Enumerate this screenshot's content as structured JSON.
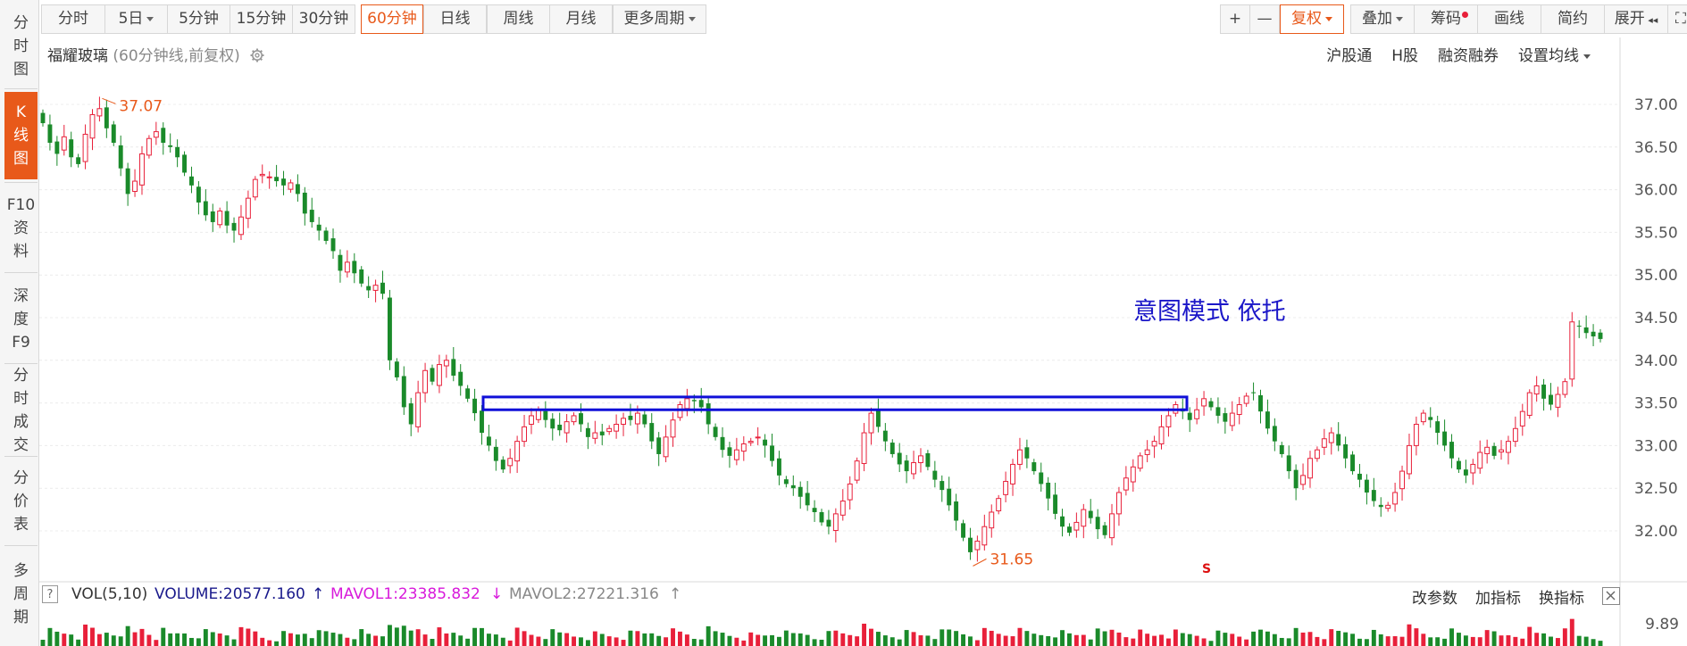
{
  "left_tabs": [
    {
      "label": "分时图",
      "chars": [
        "分",
        "时",
        "图"
      ]
    },
    {
      "label": "K线图",
      "chars": [
        "K",
        "线",
        "图"
      ],
      "active": true
    },
    {
      "label": "F10资料",
      "chars": [
        "F10",
        "资",
        "料"
      ]
    },
    {
      "label": "深度F9",
      "chars": [
        "深",
        "度",
        "F9"
      ]
    },
    {
      "label": "分时成交",
      "chars": [
        "分",
        "时",
        "成",
        "交"
      ]
    },
    {
      "label": "分价表",
      "chars": [
        "分",
        "价",
        "表"
      ]
    },
    {
      "label": "多周期",
      "chars": [
        "多",
        "周",
        "期"
      ]
    }
  ],
  "toolbar": {
    "periods": [
      "分时",
      "5日",
      "5分钟",
      "15分钟",
      "30分钟",
      "60分钟",
      "日线",
      "周线",
      "月线",
      "更多周期"
    ],
    "active_period": "60分钟",
    "plus": "+",
    "minus": "—",
    "fuquan": "复权",
    "overlay": "叠加",
    "chips": "筹码",
    "draw": "画线",
    "simple": "简约",
    "expand": "展开"
  },
  "stock": {
    "name": "福耀玻璃",
    "subtitle": "(60分钟线,前复权)"
  },
  "right_links": [
    "沪股通",
    "H股",
    "融资融券",
    "设置均线"
  ],
  "annotation": "意图模式 依托",
  "colors": {
    "up": "#e8203a",
    "down": "#1a8a2a",
    "accent": "#e8591a",
    "box": "#1010d8",
    "annotation": "#1b17c8"
  },
  "chart_data": {
    "type": "candlestick",
    "y_ticks": [
      "37.00",
      "36.50",
      "36.00",
      "35.50",
      "35.00",
      "34.50",
      "34.00",
      "33.50",
      "33.00",
      "32.50",
      "32.00"
    ],
    "ylim": [
      31.5,
      37.3
    ],
    "high_label": "37.07",
    "low_label": "31.65",
    "resistance_zone": [
      33.42,
      33.57
    ],
    "closes": [
      36.78,
      36.55,
      36.42,
      36.62,
      36.38,
      36.3,
      36.65,
      36.88,
      36.95,
      36.72,
      36.55,
      36.25,
      35.95,
      36.1,
      36.42,
      36.6,
      36.68,
      36.55,
      36.5,
      36.38,
      36.2,
      36.05,
      35.85,
      35.7,
      35.62,
      35.75,
      35.58,
      35.52,
      35.68,
      35.9,
      36.12,
      36.18,
      36.15,
      36.1,
      36.05,
      36.08,
      35.95,
      35.72,
      35.62,
      35.52,
      35.4,
      35.28,
      35.05,
      35.15,
      35.02,
      34.9,
      34.82,
      34.88,
      34.78,
      34.0,
      33.8,
      33.45,
      33.25,
      33.62,
      33.88,
      33.75,
      33.95,
      34.0,
      33.82,
      33.7,
      33.55,
      33.38,
      33.15,
      33.0,
      32.82,
      32.72,
      32.85,
      33.05,
      33.22,
      33.35,
      33.42,
      33.3,
      33.2,
      33.18,
      33.28,
      33.35,
      33.25,
      33.1,
      33.15,
      33.12,
      33.2,
      33.25,
      33.32,
      33.3,
      33.38,
      33.25,
      33.05,
      32.9,
      33.1,
      33.3,
      33.48,
      33.55,
      33.52,
      33.45,
      33.25,
      33.1,
      32.95,
      32.88,
      32.95,
      33.02,
      33.05,
      33.1,
      33.0,
      32.82,
      32.65,
      32.55,
      32.5,
      32.4,
      32.3,
      32.22,
      32.1,
      32.05,
      32.2,
      32.35,
      32.55,
      32.82,
      33.15,
      33.38,
      33.22,
      33.05,
      32.9,
      32.78,
      32.7,
      32.8,
      32.88,
      32.75,
      32.6,
      32.48,
      32.3,
      32.12,
      31.92,
      31.75,
      31.88,
      32.05,
      32.22,
      32.38,
      32.58,
      32.78,
      32.95,
      32.85,
      32.7,
      32.55,
      32.38,
      32.2,
      32.05,
      31.98,
      32.1,
      32.25,
      32.15,
      32.02,
      31.95,
      32.2,
      32.45,
      32.62,
      32.75,
      32.88,
      32.95,
      33.05,
      33.22,
      33.35,
      33.48,
      33.4,
      33.3,
      33.42,
      33.55,
      33.45,
      33.35,
      33.28,
      33.38,
      33.48,
      33.58,
      33.62,
      33.4,
      33.2,
      33.05,
      32.9,
      32.7,
      32.5,
      32.65,
      32.85,
      32.95,
      33.08,
      33.15,
      33.0,
      32.85,
      32.7,
      32.6,
      32.45,
      32.35,
      32.28,
      32.3,
      32.45,
      32.7,
      33.0,
      33.25,
      33.38,
      33.3,
      33.15,
      33.0,
      32.85,
      32.72,
      32.65,
      32.78,
      32.92,
      32.98,
      32.88,
      32.95,
      33.05,
      33.2,
      33.4,
      33.62,
      33.7,
      33.55,
      33.48,
      33.6,
      33.75,
      34.45,
      34.4,
      34.32,
      34.28,
      34.25
    ],
    "volume_header": {
      "label": "VOL(5,10)",
      "volume": "VOLUME:20577.160",
      "mavol1": "MAVOL1:23385.832",
      "mavol2": "MAVOL2:27221.316"
    },
    "volume_tick": "9.89"
  },
  "volume_actions": [
    "改参数",
    "加指标",
    "换指标"
  ]
}
